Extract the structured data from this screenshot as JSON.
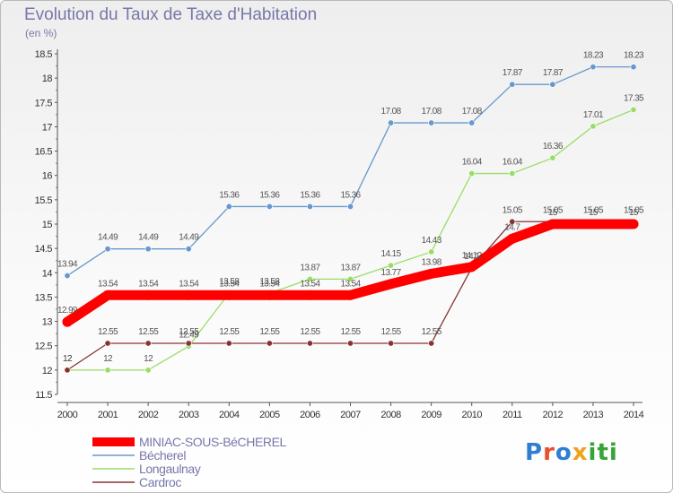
{
  "chart_data": {
    "type": "line",
    "title": "Evolution du Taux de Taxe d'Habitation",
    "subtitle": "(en %)",
    "x": [
      2000,
      2001,
      2002,
      2003,
      2004,
      2005,
      2006,
      2007,
      2008,
      2009,
      2010,
      2011,
      2012,
      2013,
      2014
    ],
    "ylim": [
      11.5,
      18.5
    ],
    "yticks": [
      11.5,
      12,
      12.5,
      13,
      13.5,
      14,
      14.5,
      15,
      15.5,
      16,
      16.5,
      17,
      17.5,
      18,
      18.5
    ],
    "grid": false,
    "legend_position": "bottom-left",
    "series": [
      {
        "name": "MINIAC-SOUS-BéCHEREL",
        "color": "#ff0000",
        "values": [
          12.99,
          13.54,
          13.54,
          13.54,
          13.54,
          13.54,
          13.54,
          13.54,
          13.77,
          13.98,
          14.12,
          14.7,
          15,
          15,
          15
        ],
        "labels": [
          "12.99",
          "13.54",
          "13.54",
          "13.54",
          "13.54",
          "13.54",
          "13.54",
          "13.54",
          "13.77",
          "13.98",
          "14.12",
          "14.7",
          "15",
          "15",
          "15"
        ]
      },
      {
        "name": "Bécherel",
        "color": "#6699cc",
        "values": [
          13.94,
          14.49,
          14.49,
          14.49,
          15.36,
          15.36,
          15.36,
          15.36,
          17.08,
          17.08,
          17.08,
          17.87,
          17.87,
          18.23,
          18.23
        ],
        "labels": [
          "13.94",
          "14.49",
          "14.49",
          "14.49",
          "15.36",
          "15.36",
          "15.36",
          "15.36",
          "17.08",
          "17.08",
          "17.08",
          "17.87",
          "17.87",
          "18.23",
          "18.23"
        ]
      },
      {
        "name": "Longaulnay",
        "color": "#99dd66",
        "values": [
          12,
          12,
          12,
          12.49,
          13.58,
          13.58,
          13.87,
          13.87,
          14.15,
          14.43,
          16.04,
          16.04,
          16.36,
          17.01,
          17.35
        ],
        "labels": [
          "12",
          "12",
          "12",
          "12.49",
          "13.58",
          "13.58",
          "13.87",
          "13.87",
          "14.15",
          "14.43",
          "16.04",
          "16.04",
          "16.36",
          "17.01",
          "17.35"
        ]
      },
      {
        "name": "Cardroc",
        "color": "#883333",
        "values": [
          12,
          12.55,
          12.55,
          12.55,
          12.55,
          12.55,
          12.55,
          12.55,
          12.55,
          12.55,
          14.1,
          15.05,
          15.05,
          15.05,
          15.05
        ],
        "labels": [
          "12",
          "12.55",
          "12.55",
          "12.55",
          "12.55",
          "12.55",
          "12.55",
          "12.55",
          "12.55",
          "12.55",
          "14.1",
          "15.05",
          "15.05",
          "15.05",
          "15.05"
        ]
      }
    ]
  },
  "logo": {
    "letters": [
      "P",
      "r",
      "o",
      "x",
      "i",
      "t",
      "i"
    ]
  }
}
